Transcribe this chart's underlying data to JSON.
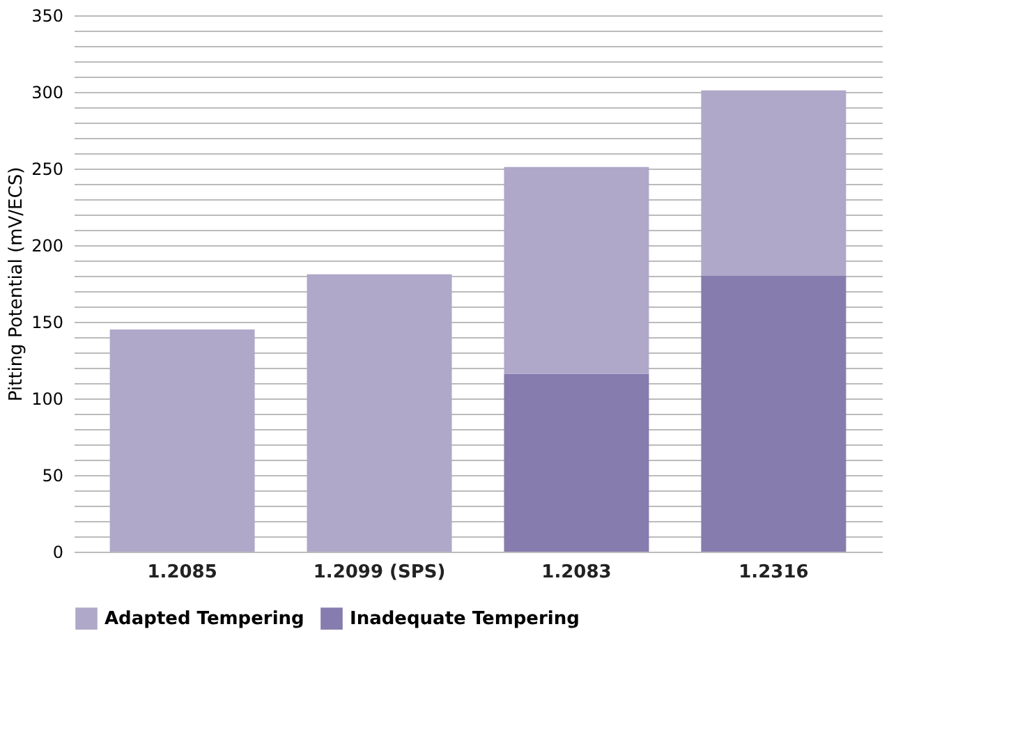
{
  "chart_data": {
    "type": "bar",
    "stacked": true,
    "ylabel": "Pitting Potential (mV/ECS)",
    "categories": [
      "1.2085",
      "1.2099 (SPS)",
      "1.2083",
      "1.2316"
    ],
    "series": [
      {
        "name": "Inadequate Tempering",
        "color": "#867cad",
        "values": [
          null,
          null,
          116,
          180
        ]
      },
      {
        "name": "Adapted Tempering",
        "color": "#afa8c9",
        "values": [
          145,
          181,
          135,
          121
        ]
      }
    ],
    "ylim": [
      0,
      350
    ],
    "yticks": [
      0,
      {
        "value": 10,
        "label": null
      },
      {
        "value": 20,
        "label": null
      },
      {
        "value": 30,
        "label": null
      },
      {
        "value": 40,
        "label": null
      },
      50,
      {
        "value": 60,
        "label": null
      },
      {
        "value": 70,
        "label": null
      },
      {
        "value": 80,
        "label": null
      },
      {
        "value": 90,
        "label": null
      },
      100,
      {
        "value": 110,
        "label": null
      },
      {
        "value": 120,
        "label": null
      },
      {
        "value": 130,
        "label": null
      },
      {
        "value": 140,
        "label": null
      },
      150,
      {
        "value": 160,
        "label": null
      },
      {
        "value": 170,
        "label": null
      },
      {
        "value": 180,
        "label": null
      },
      {
        "value": 190,
        "label": null
      },
      200,
      {
        "value": 210,
        "label": null
      },
      {
        "value": 220,
        "label": null
      },
      {
        "value": 230,
        "label": null
      },
      {
        "value": 240,
        "label": null
      },
      250,
      {
        "value": 260,
        "label": null
      },
      {
        "value": 270,
        "label": null
      },
      {
        "value": 280,
        "label": null
      },
      {
        "value": 290,
        "label": null
      },
      300,
      {
        "value": 310,
        "label": null
      },
      {
        "value": 320,
        "label": null
      },
      {
        "value": 330,
        "label": null
      },
      {
        "value": 340,
        "label": null
      },
      350
    ],
    "grid": "y",
    "legend": "bottom"
  }
}
